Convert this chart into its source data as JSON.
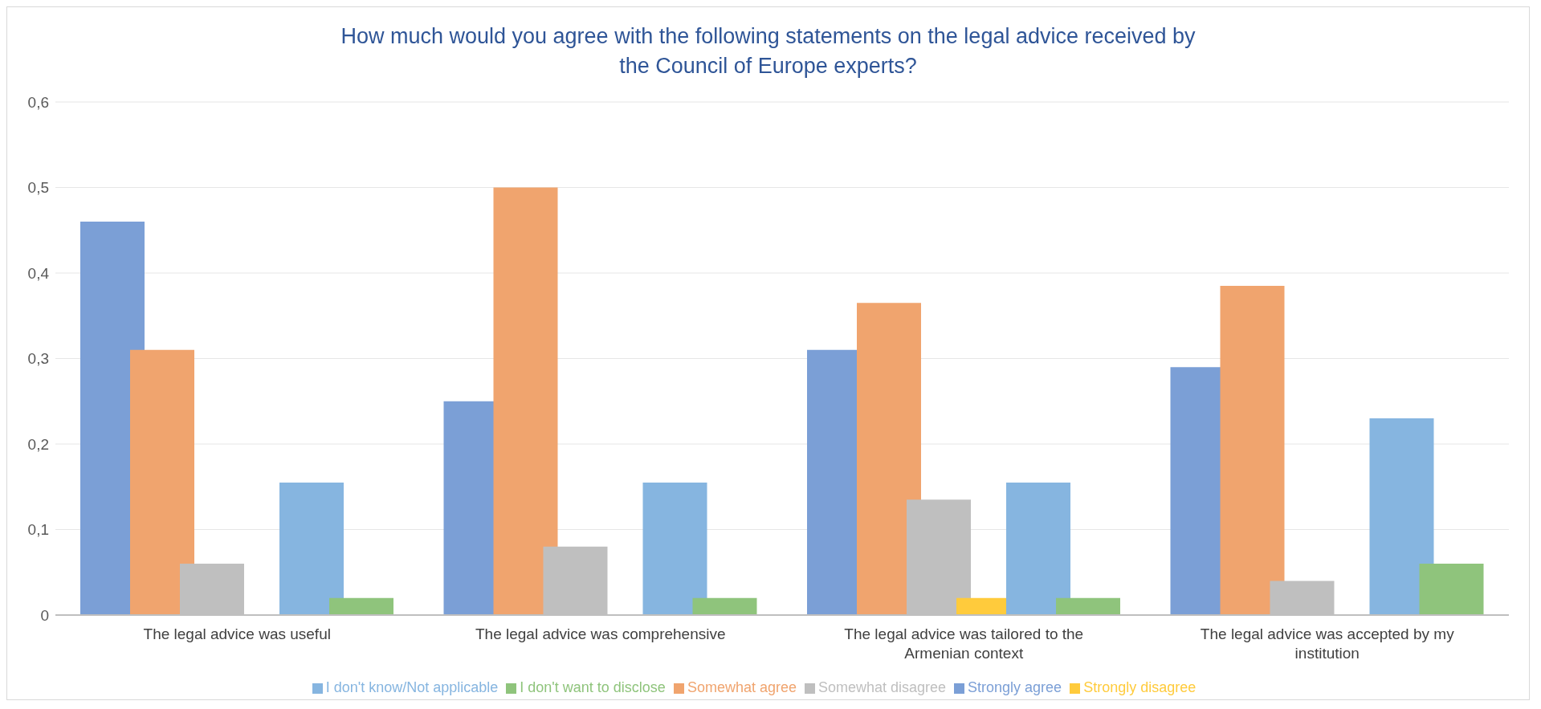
{
  "chart_data": {
    "type": "bar",
    "title": "How much would you agree with the following statements on the legal advice received by the Council of Europe experts?",
    "categories": [
      "The legal advice was useful",
      "The legal advice was comprehensive",
      "The legal advice was tailored to the Armenian context",
      "The legal advice was accepted by my institution"
    ],
    "series": [
      {
        "name": "Strongly agree",
        "color": "#7b9fd6",
        "values": [
          0.46,
          0.25,
          0.31,
          0.29
        ]
      },
      {
        "name": "Somewhat agree",
        "color": "#f0a46e",
        "values": [
          0.31,
          0.5,
          0.365,
          0.385
        ]
      },
      {
        "name": "Somewhat disagree",
        "color": "#bfbfbf",
        "values": [
          0.06,
          0.08,
          0.135,
          0.04
        ]
      },
      {
        "name": "Strongly disagree",
        "color": "#ffcb3c",
        "values": [
          0,
          0,
          0.02,
          0
        ]
      },
      {
        "name": "I don't know/Not applicable",
        "color": "#86b5e0",
        "values": [
          0.155,
          0.155,
          0.155,
          0.23
        ]
      },
      {
        "name": "I don't want to disclose",
        "color": "#8fc47c",
        "values": [
          0.02,
          0.02,
          0.02,
          0.06
        ]
      }
    ],
    "ylim": [
      0,
      0.6
    ],
    "yticks": [
      0,
      {
        "value": 0.1,
        "label": "0,1"
      },
      {
        "value": 0.2,
        "label": "0,2"
      },
      {
        "value": 0.3,
        "label": "0,3"
      },
      {
        "value": 0.4,
        "label": "0,4"
      },
      {
        "value": 0.5,
        "label": "0,5"
      },
      {
        "value": 0.6,
        "label": "0,6"
      }
    ],
    "grid": "y",
    "legend": "bottom"
  }
}
